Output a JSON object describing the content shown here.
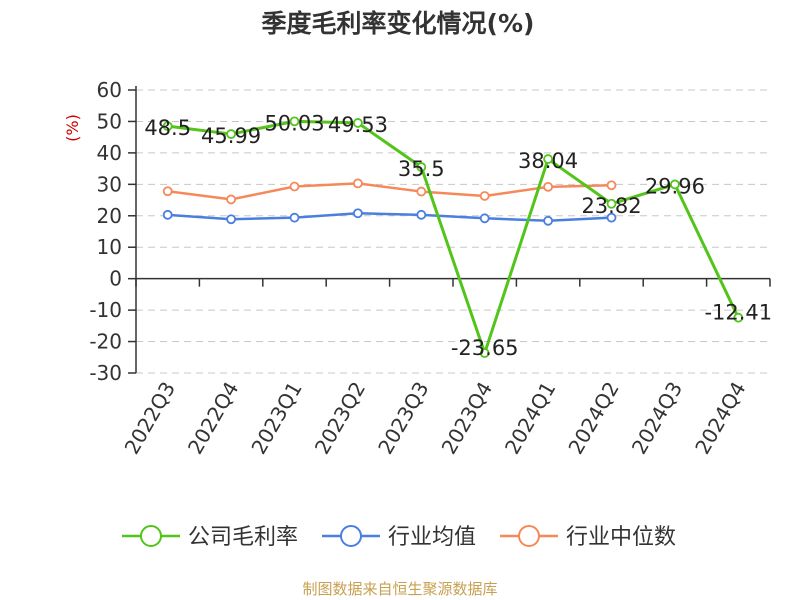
{
  "chart_data": {
    "type": "line",
    "title": "季度毛利率变化情况(%)",
    "ylabel": "(%)",
    "xlabel": "",
    "ylim": [
      -30,
      60
    ],
    "yticks": [
      60,
      50,
      40,
      30,
      20,
      10,
      0,
      -10,
      -20,
      -30
    ],
    "categories": [
      "2022Q3",
      "2022Q4",
      "2023Q1",
      "2023Q2",
      "2023Q3",
      "2023Q4",
      "2024Q1",
      "2024Q2",
      "2024Q3",
      "2024Q4"
    ],
    "grid": true,
    "legend_position": "bottom",
    "series": [
      {
        "name": "公司毛利率",
        "color": "#52c41a",
        "values": [
          48.5,
          45.99,
          50.03,
          49.53,
          35.5,
          -23.65,
          38.04,
          23.82,
          29.96,
          -12.41
        ],
        "labels": [
          "48.5",
          "45.99",
          "50.03",
          "49.53",
          "35.5",
          "-23.65",
          "38.04",
          "23.82",
          "29.96",
          "-12.41"
        ]
      },
      {
        "name": "行业均值",
        "color": "#4a7fe0",
        "values": [
          20.3,
          18.9,
          19.4,
          20.8,
          20.3,
          19.2,
          18.4,
          19.4,
          null,
          null
        ]
      },
      {
        "name": "行业中位数",
        "color": "#f5895a",
        "values": [
          27.8,
          25.2,
          29.3,
          30.3,
          27.7,
          26.3,
          29.2,
          29.7,
          null,
          null
        ]
      }
    ],
    "source": "制图数据来自恒生聚源数据库"
  }
}
